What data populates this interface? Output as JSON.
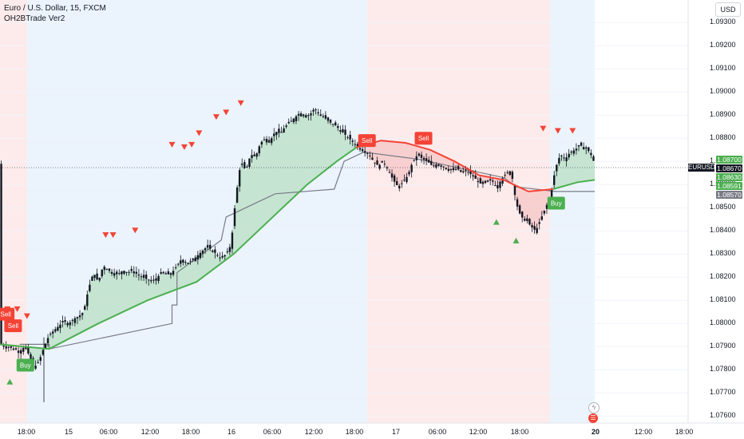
{
  "legend": {
    "symbol_title": "Euro / U.S. Dollar, 15, FXCM",
    "indicator_name": "OH2BTrade Ver2"
  },
  "currency_button": "USD",
  "symbol_tag": "EURUSD",
  "price_tags": [
    {
      "label": "1.08700",
      "color": "#4caf50"
    },
    {
      "label": "1.08670",
      "color": "#131722"
    },
    {
      "label": "1.08630",
      "color": "#4caf50"
    },
    {
      "label": "1.08591",
      "color": "#4caf50"
    },
    {
      "label": "1.08570",
      "color": "#787b86"
    }
  ],
  "bottom_icons": [
    {
      "name": "lightning-icon",
      "glyph": "ϟ"
    },
    {
      "name": "flag-icon",
      "glyph": "☰"
    }
  ],
  "chart_data": {
    "type": "candlestick",
    "title": "Euro / U.S. Dollar, 15, FXCM",
    "ylim": [
      1.0757,
      1.0938
    ],
    "y_ticks": [
      "1.09300",
      "1.09200",
      "1.09100",
      "1.09000",
      "1.08900",
      "1.08800",
      "1.08700",
      "1.08600",
      "1.08500",
      "1.08400",
      "1.08300",
      "1.08200",
      "1.08100",
      "1.08000",
      "1.07900",
      "1.07800",
      "1.07700",
      "1.07600"
    ],
    "x_ticks": [
      {
        "label": "18:00",
        "bold": false
      },
      {
        "label": "15",
        "bold": false
      },
      {
        "label": "06:00",
        "bold": false
      },
      {
        "label": "12:00",
        "bold": false
      },
      {
        "label": "18:00",
        "bold": false
      },
      {
        "label": "16",
        "bold": false
      },
      {
        "label": "06:00",
        "bold": false
      },
      {
        "label": "12:00",
        "bold": false
      },
      {
        "label": "18:00",
        "bold": false
      },
      {
        "label": "17",
        "bold": false
      },
      {
        "label": "06:00",
        "bold": false
      },
      {
        "label": "12:00",
        "bold": false
      },
      {
        "label": "18:00",
        "bold": false
      },
      {
        "label": "20",
        "bold": true
      },
      {
        "label": "12:00",
        "bold": false
      },
      {
        "label": "18:00",
        "bold": false
      }
    ],
    "price_path": [
      [
        0,
        1.0791
      ],
      [
        3,
        1.079
      ],
      [
        6,
        1.0789
      ],
      [
        8,
        1.0788
      ],
      [
        10,
        1.079
      ],
      [
        12,
        1.0786
      ],
      [
        14,
        1.0781
      ],
      [
        16,
        1.0784
      ],
      [
        18,
        1.079
      ],
      [
        20,
        1.0795
      ],
      [
        22,
        1.0797
      ],
      [
        24,
        1.0799
      ],
      [
        26,
        1.0801
      ],
      [
        28,
        1.08
      ],
      [
        30,
        1.0802
      ],
      [
        32,
        1.0803
      ],
      [
        34,
        1.0805
      ],
      [
        36,
        1.0815
      ],
      [
        38,
        1.0822
      ],
      [
        40,
        1.0818
      ],
      [
        42,
        1.0825
      ],
      [
        44,
        1.0823
      ],
      [
        46,
        1.0822
      ],
      [
        48,
        1.0821
      ],
      [
        50,
        1.0823
      ],
      [
        52,
        1.0822
      ],
      [
        54,
        1.0823
      ],
      [
        56,
        1.0821
      ],
      [
        58,
        1.082
      ],
      [
        60,
        1.0819
      ],
      [
        62,
        1.0818
      ],
      [
        64,
        1.082
      ],
      [
        66,
        1.0822
      ],
      [
        68,
        1.0821
      ],
      [
        70,
        1.0822
      ],
      [
        72,
        1.0825
      ],
      [
        74,
        1.0828
      ],
      [
        76,
        1.0826
      ],
      [
        78,
        1.0827
      ],
      [
        80,
        1.0829
      ],
      [
        82,
        1.0831
      ],
      [
        84,
        1.0833
      ],
      [
        86,
        1.0832
      ],
      [
        88,
        1.083
      ],
      [
        90,
        1.0828
      ],
      [
        92,
        1.083
      ],
      [
        94,
        1.0834
      ],
      [
        96,
        1.0855
      ],
      [
        98,
        1.087
      ],
      [
        100,
        1.0866
      ],
      [
        102,
        1.0873
      ],
      [
        104,
        1.0872
      ],
      [
        106,
        1.0878
      ],
      [
        108,
        1.088
      ],
      [
        110,
        1.0879
      ],
      [
        112,
        1.0883
      ],
      [
        114,
        1.0882
      ],
      [
        116,
        1.0885
      ],
      [
        118,
        1.0887
      ],
      [
        120,
        1.0889
      ],
      [
        122,
        1.0891
      ],
      [
        124,
        1.089
      ],
      [
        126,
        1.089
      ],
      [
        128,
        1.0893
      ],
      [
        130,
        1.089
      ],
      [
        132,
        1.0889
      ],
      [
        134,
        1.0887
      ],
      [
        136,
        1.0886
      ],
      [
        138,
        1.0884
      ],
      [
        140,
        1.0882
      ],
      [
        142,
        1.088
      ],
      [
        144,
        1.0878
      ],
      [
        146,
        1.0876
      ],
      [
        148,
        1.0875
      ],
      [
        150,
        1.0873
      ],
      [
        152,
        1.087
      ],
      [
        154,
        1.0868
      ],
      [
        156,
        1.087
      ],
      [
        158,
        1.0866
      ],
      [
        160,
        1.0862
      ],
      [
        162,
        1.0859
      ],
      [
        164,
        1.0861
      ],
      [
        166,
        1.0864
      ],
      [
        168,
        1.087
      ],
      [
        170,
        1.0873
      ],
      [
        172,
        1.0871
      ],
      [
        174,
        1.087
      ],
      [
        176,
        1.0868
      ],
      [
        178,
        1.0869
      ],
      [
        180,
        1.0868
      ],
      [
        182,
        1.0867
      ],
      [
        184,
        1.0866
      ],
      [
        186,
        1.0867
      ],
      [
        188,
        1.0865
      ],
      [
        190,
        1.0866
      ],
      [
        192,
        1.0864
      ],
      [
        194,
        1.0862
      ],
      [
        196,
        1.086
      ],
      [
        198,
        1.0861
      ],
      [
        200,
        1.0862
      ],
      [
        202,
        1.0859
      ],
      [
        204,
        1.0862
      ],
      [
        206,
        1.0865
      ],
      [
        208,
        1.0866
      ],
      [
        210,
        1.0852
      ],
      [
        212,
        1.0846
      ],
      [
        214,
        1.0845
      ],
      [
        216,
        1.0842
      ],
      [
        218,
        1.084
      ],
      [
        220,
        1.0845
      ],
      [
        222,
        1.085
      ],
      [
        224,
        1.0855
      ],
      [
        226,
        1.0867
      ],
      [
        228,
        1.0873
      ],
      [
        230,
        1.0871
      ],
      [
        232,
        1.0874
      ],
      [
        234,
        1.0875
      ],
      [
        236,
        1.0877
      ],
      [
        238,
        1.0876
      ],
      [
        240,
        1.0874
      ],
      [
        242,
        1.0869
      ]
    ],
    "series": [
      {
        "name": "",
        "color": "#4caf50",
        "points": [
          [
            0,
            1.0791
          ],
          [
            20,
            1.0789
          ],
          [
            40,
            1.08
          ],
          [
            60,
            1.081
          ],
          [
            80,
            1.0818
          ],
          [
            95,
            1.083
          ],
          [
            110,
            1.0845
          ],
          [
            125,
            1.086
          ],
          [
            137,
            1.087
          ],
          [
            145,
            1.0876
          ]
        ]
      },
      {
        "name": "",
        "color": "#f44336",
        "points": [
          [
            145,
            1.0876
          ],
          [
            155,
            1.0879
          ],
          [
            165,
            1.0878
          ],
          [
            175,
            1.0875
          ],
          [
            185,
            1.087
          ],
          [
            195,
            1.0864
          ],
          [
            205,
            1.0862
          ],
          [
            215,
            1.0857
          ],
          [
            225,
            1.0858
          ]
        ]
      },
      {
        "name": "",
        "color": "#4caf50",
        "points": [
          [
            225,
            1.0858
          ],
          [
            235,
            1.0861
          ],
          [
            242,
            1.0862
          ]
        ]
      }
    ],
    "signals": [
      {
        "type": "sell",
        "label": "Sell",
        "t": 2,
        "price": 1.0804
      },
      {
        "type": "sell",
        "label": "Sell",
        "t": 5,
        "price": 1.0799
      },
      {
        "type": "sell",
        "label": "Sell",
        "t": 149,
        "price": 1.0879
      },
      {
        "type": "sell",
        "label": "Sell",
        "t": 172,
        "price": 1.088
      },
      {
        "type": "buy",
        "label": "Buy",
        "t": 10,
        "price": 1.0782
      },
      {
        "type": "buy",
        "label": "Buy",
        "t": 226,
        "price": 1.0852
      }
    ]
  }
}
